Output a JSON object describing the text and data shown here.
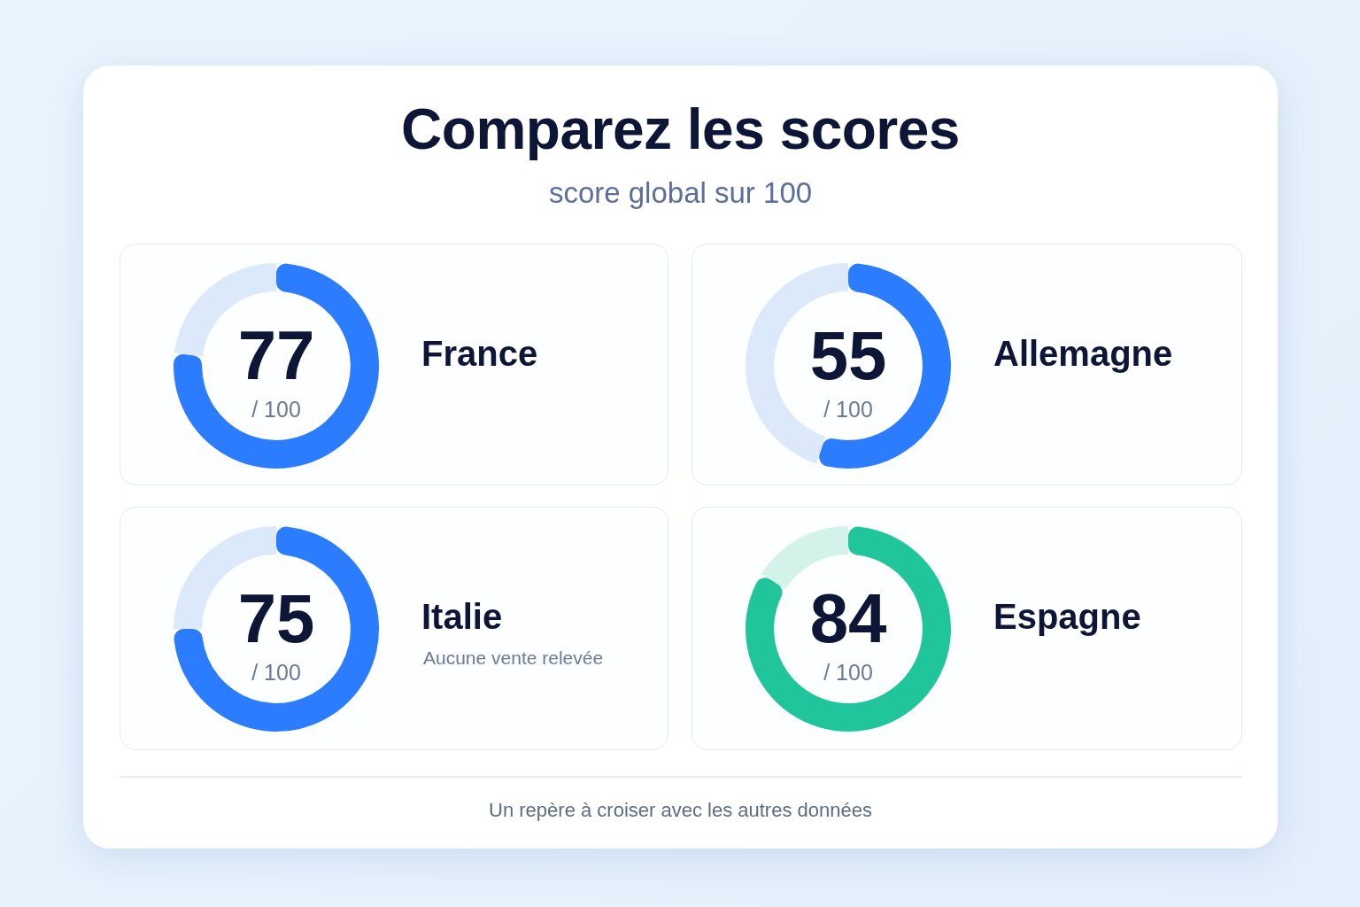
{
  "chart_data": [
    {
      "type": "other",
      "title": "Comparez les scores",
      "subtitle": "score global sur 100",
      "annotations": [
        "Un repère à croiser avec les autres données"
      ]
    },
    {
      "type": "donut",
      "title": "France",
      "categories": [
        null,
        null
      ],
      "values": [
        77,
        23
      ],
      "colors": [
        "#2b7cff",
        "#dce9fb"
      ],
      "value_labels": [
        "77",
        null
      ],
      "annotations": [
        "/ 100"
      ]
    },
    {
      "type": "donut",
      "title": "Allemagne",
      "categories": [
        null,
        null
      ],
      "values": [
        55,
        45
      ],
      "colors": [
        "#2b7cff",
        "#dce9fb"
      ],
      "value_labels": [
        "55",
        null
      ],
      "annotations": [
        "/ 100"
      ]
    },
    {
      "type": "donut",
      "title": "Italie",
      "subtitle": "Aucune vente relevée",
      "categories": [
        null,
        null
      ],
      "values": [
        75,
        25
      ],
      "colors": [
        "#2b7cff",
        "#dce9fb"
      ],
      "value_labels": [
        "75",
        null
      ],
      "annotations": [
        "/ 100"
      ]
    },
    {
      "type": "donut",
      "title": "Espagne",
      "categories": [
        null,
        null
      ],
      "values": [
        84,
        16
      ],
      "colors": [
        "#20c59c",
        "#d3f2e9"
      ],
      "value_labels": [
        "84",
        null
      ],
      "annotations": [
        "/ 100"
      ]
    }
  ]
}
